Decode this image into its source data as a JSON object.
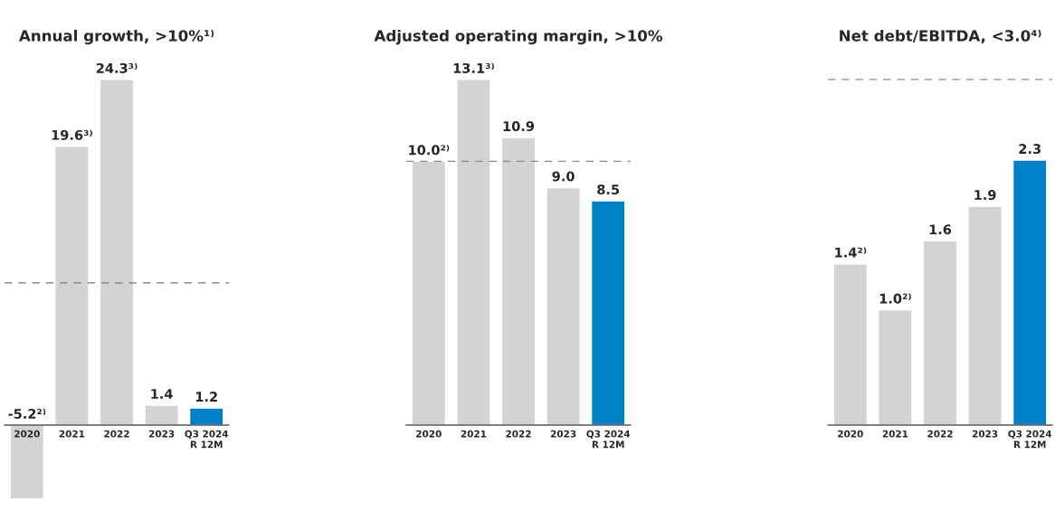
{
  "chart_data": [
    {
      "type": "bar",
      "title": "Annual growth, >10%¹⁾",
      "categories": [
        "2020",
        "2021",
        "2022",
        "2023",
        "Q3 2024\nR 12M"
      ],
      "values": [
        -5.2,
        19.6,
        24.3,
        1.4,
        1.2
      ],
      "colors": [
        "#d1d3d4",
        "#d1d3d4",
        "#d1d3d4",
        "#d1d3d4",
        "#0080c8"
      ],
      "value_labels": [
        "-5.2²⁾",
        "19.6³⁾",
        "24.3³⁾",
        "1.4",
        "1.2"
      ],
      "ref_lines": [
        {
          "axis": "y",
          "value": 10,
          "color": "#8a8a8a",
          "line_style": "dashed"
        }
      ]
    },
    {
      "type": "bar",
      "title": "Adjusted operating margin, >10%",
      "categories": [
        "2020",
        "2021",
        "2022",
        "2023",
        "Q3 2024\nR 12M"
      ],
      "values": [
        10.0,
        13.1,
        10.9,
        9.0,
        8.5
      ],
      "colors": [
        "#d1d3d4",
        "#d1d3d4",
        "#d1d3d4",
        "#d1d3d4",
        "#0080c8"
      ],
      "value_labels": [
        "10.0²⁾",
        "13.1³⁾",
        "10.9",
        "9.0",
        "8.5"
      ],
      "ref_lines": [
        {
          "axis": "y",
          "value": 10,
          "color": "#8a8a8a",
          "line_style": "dashed"
        }
      ]
    },
    {
      "type": "bar",
      "title": "Net debt/EBITDA, <3.0⁴⁾",
      "categories": [
        "2020",
        "2021",
        "2022",
        "2023",
        "Q3 2024\nR 12M"
      ],
      "values": [
        1.4,
        1.0,
        1.6,
        1.9,
        2.3
      ],
      "colors": [
        "#d1d3d4",
        "#d1d3d4",
        "#d1d3d4",
        "#d1d3d4",
        "#0080c8"
      ],
      "value_labels": [
        "1.4²⁾",
        "1.0²⁾",
        "1.6",
        "1.9",
        "2.3"
      ],
      "ref_lines": [
        {
          "axis": "y",
          "value": 3.0,
          "color": "#8a8a8a",
          "line_style": "dashed"
        }
      ]
    }
  ]
}
